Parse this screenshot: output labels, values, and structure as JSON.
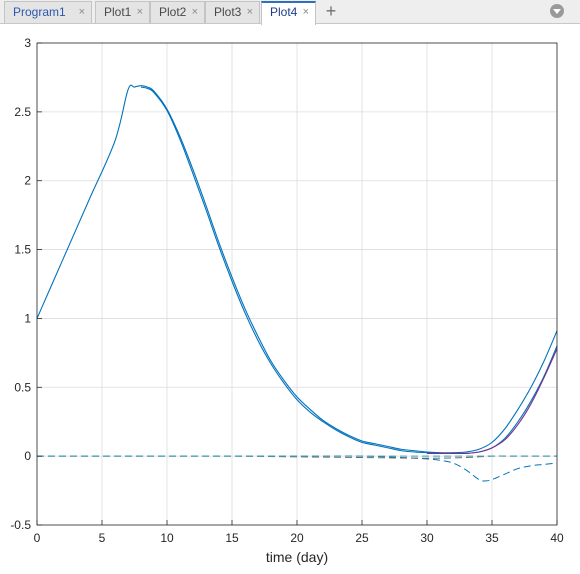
{
  "tabs": [
    {
      "label": "Program1",
      "active": false
    },
    {
      "label": "Plot1",
      "active": false
    },
    {
      "label": "Plot2",
      "active": false
    },
    {
      "label": "Plot3",
      "active": false
    },
    {
      "label": "Plot4",
      "active": true
    }
  ],
  "tab_close_glyph": "×",
  "add_tab_glyph": "+",
  "icons": {
    "close": "close-icon",
    "add": "plus-icon",
    "menu": "chevron-down-circle-icon"
  },
  "chart_data": {
    "type": "line",
    "title": "",
    "xlabel": "time (day)",
    "ylabel": "",
    "xlim": [
      0,
      40
    ],
    "ylim": [
      -0.5,
      3
    ],
    "xticks": [
      0,
      5,
      10,
      15,
      20,
      25,
      30,
      35,
      40
    ],
    "yticks": [
      -0.5,
      0,
      0.5,
      1,
      1.5,
      2,
      2.5,
      3
    ],
    "ytick_labels": [
      "-0.5",
      "0",
      "0.5",
      "1",
      "1.5",
      "2",
      "2.5",
      "3"
    ],
    "grid": true,
    "legend": "none",
    "series": [
      {
        "color": "#0072bd",
        "style": "solid",
        "x": [
          0,
          2,
          4,
          6,
          7,
          7.5,
          8,
          8.5,
          9,
          10,
          11,
          12,
          13,
          14,
          15,
          16,
          17,
          18,
          19,
          20,
          21,
          22,
          23,
          24,
          25,
          26,
          27,
          28,
          29,
          30,
          31,
          32,
          33,
          34,
          35,
          36,
          37,
          38,
          39,
          40
        ],
        "y": [
          1.0,
          1.43,
          1.86,
          2.29,
          2.66,
          2.68,
          2.69,
          2.68,
          2.65,
          2.52,
          2.32,
          2.08,
          1.82,
          1.55,
          1.3,
          1.07,
          0.87,
          0.69,
          0.55,
          0.43,
          0.34,
          0.26,
          0.2,
          0.15,
          0.11,
          0.09,
          0.07,
          0.05,
          0.04,
          0.03,
          0.025,
          0.025,
          0.03,
          0.05,
          0.1,
          0.2,
          0.34,
          0.5,
          0.69,
          0.91
        ]
      },
      {
        "color": "#0072bd",
        "style": "solid",
        "x": [
          8,
          8.5,
          9,
          10,
          11,
          12,
          13,
          14,
          15,
          16,
          17,
          18,
          19,
          20,
          21,
          22,
          23,
          24,
          25,
          26,
          27,
          28,
          29,
          30,
          31,
          32,
          33,
          34,
          35,
          36,
          37,
          38,
          39,
          40
        ],
        "y": [
          2.68,
          2.67,
          2.64,
          2.51,
          2.3,
          2.05,
          1.79,
          1.52,
          1.27,
          1.04,
          0.84,
          0.67,
          0.53,
          0.41,
          0.32,
          0.25,
          0.19,
          0.14,
          0.1,
          0.08,
          0.06,
          0.04,
          0.03,
          0.025,
          0.02,
          0.02,
          0.02,
          0.03,
          0.06,
          0.13,
          0.25,
          0.4,
          0.58,
          0.8
        ]
      },
      {
        "color": "#7e2f8e",
        "style": "solid",
        "x": [
          30,
          31,
          32,
          33,
          34,
          35,
          36,
          37,
          38,
          39,
          40
        ],
        "y": [
          0.02,
          0.02,
          0.02,
          0.02,
          0.03,
          0.06,
          0.12,
          0.23,
          0.38,
          0.57,
          0.78
        ]
      },
      {
        "color": "#0072bd",
        "style": "dashed",
        "x": [
          0,
          5,
          10,
          15,
          20,
          25,
          28,
          30,
          31,
          32,
          33,
          34,
          34.5,
          35,
          36,
          37,
          38,
          39,
          40
        ],
        "y": [
          0,
          0,
          0,
          0,
          0,
          0,
          -0.01,
          -0.02,
          -0.03,
          -0.05,
          -0.1,
          -0.17,
          -0.18,
          -0.17,
          -0.13,
          -0.09,
          -0.07,
          -0.06,
          -0.05
        ]
      },
      {
        "color": "#6b6b6b",
        "style": "dashed",
        "x": [
          0,
          10,
          15,
          20,
          25,
          30,
          33,
          35,
          37,
          40
        ],
        "y": [
          0,
          0,
          0,
          -0.005,
          -0.01,
          -0.015,
          -0.01,
          0,
          0,
          0
        ]
      },
      {
        "color": "#3aa0b8",
        "style": "dashed",
        "x": [
          0,
          10,
          20,
          30,
          35,
          40
        ],
        "y": [
          0,
          0,
          0,
          0,
          0,
          0
        ]
      }
    ]
  }
}
